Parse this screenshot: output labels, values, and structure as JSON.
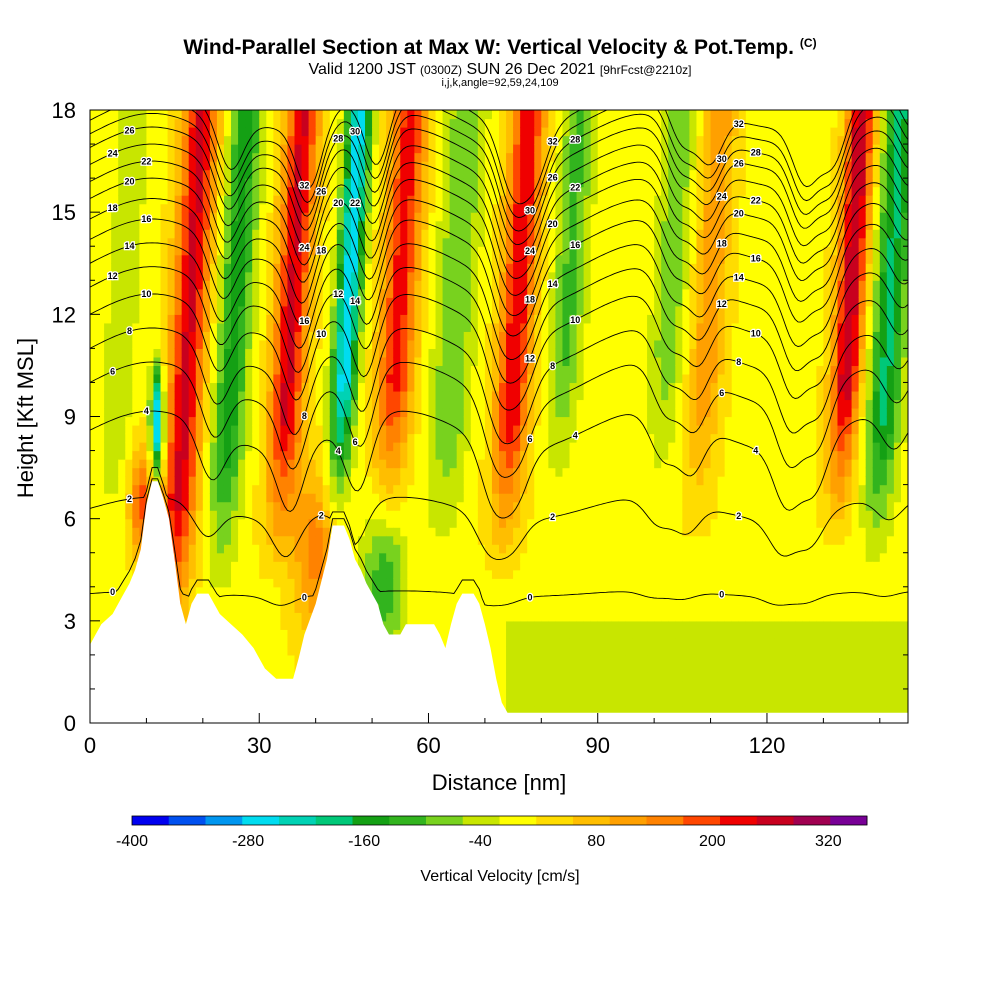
{
  "title": "Wind-Parallel Section at Max W: Vertical Velocity & Pot.Temp.",
  "title_mark": "(C)",
  "subtitle_main": "Valid 1200 JST",
  "subtitle_utc": "(0300Z)",
  "subtitle_date": "SUN 26 Dec 2021",
  "subtitle_fcst": "[9hrFcst@2210z]",
  "params": "i,j,k,angle=92,59,24,109",
  "chart_data": {
    "type": "heatmap",
    "xlabel": "Distance [nm]",
    "ylabel": "Height [Kft MSL]",
    "xlim": [
      0,
      145
    ],
    "ylim": [
      0,
      18
    ],
    "x_ticks": [
      0,
      30,
      60,
      90,
      120
    ],
    "y_ticks": [
      0,
      3,
      6,
      9,
      12,
      15,
      18
    ],
    "colorbar": {
      "label": "Vertical Velocity [cm/s]",
      "tick_labels": [
        "-400",
        "-280",
        "-160",
        "-40",
        "80",
        "200",
        "320"
      ],
      "tick_values": [
        -400,
        -280,
        -160,
        -40,
        80,
        200,
        320
      ],
      "range": [
        -400,
        360
      ],
      "step": 40,
      "colors": [
        "#0000f0",
        "#0050f0",
        "#0096f0",
        "#00dcf0",
        "#00d2b4",
        "#00c878",
        "#14a014",
        "#32b41e",
        "#78d21e",
        "#c8e600",
        "#ffff00",
        "#ffdc00",
        "#ffbe00",
        "#ffa000",
        "#ff8200",
        "#ff4600",
        "#f00000",
        "#c8001e",
        "#a00050",
        "#780096"
      ]
    },
    "terrain": [
      [
        0,
        2.3
      ],
      [
        1,
        2.6
      ],
      [
        2,
        2.9
      ],
      [
        4,
        3.2
      ],
      [
        5,
        3.5
      ],
      [
        6,
        3.8
      ],
      [
        7,
        4.1
      ],
      [
        8,
        4.5
      ],
      [
        9,
        5.1
      ],
      [
        10,
        6.4
      ],
      [
        11,
        7.1
      ],
      [
        12,
        7.1
      ],
      [
        13,
        6.6
      ],
      [
        14,
        6.0
      ],
      [
        15,
        4.8
      ],
      [
        16,
        3.5
      ],
      [
        17,
        2.9
      ],
      [
        18,
        3.5
      ],
      [
        19,
        3.8
      ],
      [
        21,
        3.8
      ],
      [
        22,
        3.5
      ],
      [
        23,
        3.2
      ],
      [
        25,
        2.9
      ],
      [
        27,
        2.6
      ],
      [
        29,
        2.2
      ],
      [
        31,
        1.6
      ],
      [
        33,
        1.3
      ],
      [
        36,
        1.3
      ],
      [
        37,
        1.9
      ],
      [
        38,
        2.6
      ],
      [
        40,
        3.5
      ],
      [
        42,
        4.8
      ],
      [
        43,
        5.8
      ],
      [
        45,
        5.8
      ],
      [
        46,
        5.4
      ],
      [
        47,
        4.8
      ],
      [
        48,
        4.5
      ],
      [
        49,
        4.1
      ],
      [
        51,
        3.5
      ],
      [
        52,
        2.9
      ],
      [
        53,
        2.6
      ],
      [
        55,
        2.6
      ],
      [
        56,
        2.9
      ],
      [
        61,
        2.9
      ],
      [
        62,
        2.6
      ],
      [
        63,
        2.2
      ],
      [
        64,
        2.9
      ],
      [
        65,
        3.5
      ],
      [
        66,
        3.8
      ],
      [
        68,
        3.8
      ],
      [
        69,
        3.5
      ],
      [
        70,
        2.9
      ],
      [
        71,
        2.2
      ],
      [
        72,
        1.3
      ],
      [
        73,
        0.6
      ],
      [
        74,
        0.3
      ],
      [
        145,
        0.3
      ]
    ],
    "contours_theta": [
      {
        "label": "0",
        "base": 3.8
      },
      {
        "label": "2",
        "base": 6.3
      },
      {
        "label": "4",
        "base": 8.6
      },
      {
        "label": "6",
        "base": 10.0
      },
      {
        "label": "8",
        "base": 11.0
      },
      {
        "label": "10",
        "base": 12.0
      },
      {
        "label": "12",
        "base": 12.8
      },
      {
        "label": "14",
        "base": 13.5
      },
      {
        "label": "16",
        "base": 14.2
      },
      {
        "label": "18",
        "base": 14.8
      },
      {
        "label": "20",
        "base": 15.4
      },
      {
        "label": "22",
        "base": 15.9
      },
      {
        "label": "24",
        "base": 16.4
      },
      {
        "label": "26",
        "base": 16.9
      },
      {
        "label": "28",
        "base": 17.3
      },
      {
        "label": "30",
        "base": 17.7
      },
      {
        "label": "32",
        "base": 18.1
      }
    ]
  }
}
